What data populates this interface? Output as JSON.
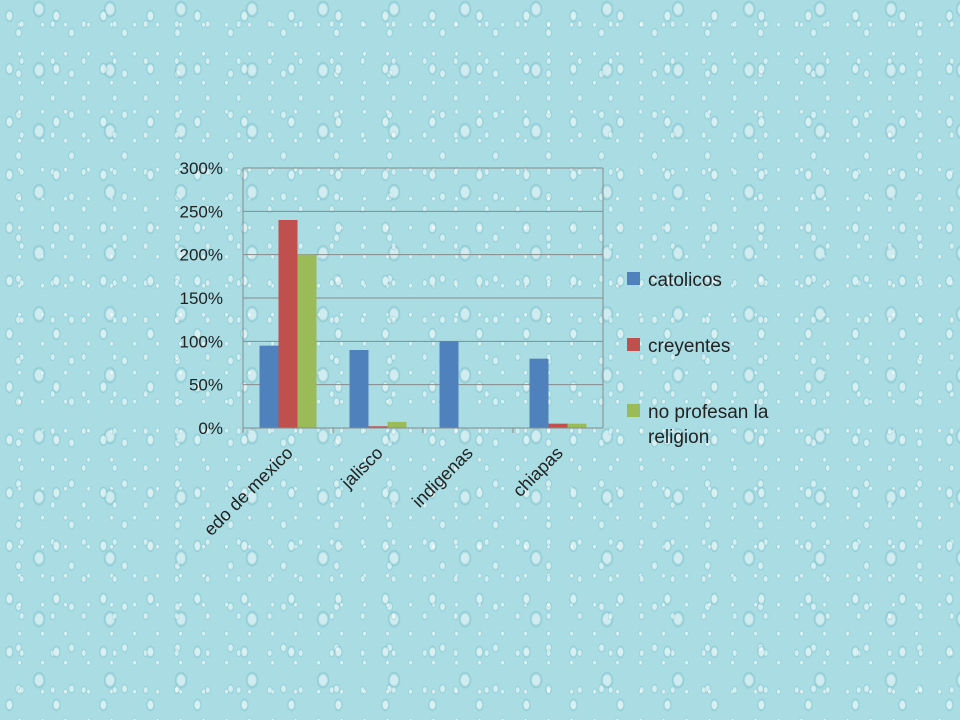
{
  "chart_data": {
    "type": "bar",
    "title": "",
    "xlabel": "",
    "ylabel": "",
    "categories": [
      "edo de mexico",
      "jalisco",
      "indigenas",
      "chiapas"
    ],
    "series": [
      {
        "name": "catolicos",
        "color": "#4f81bd",
        "values": [
          95,
          90,
          100,
          80
        ]
      },
      {
        "name": "creyentes",
        "color": "#c0504d",
        "values": [
          240,
          2,
          0,
          5
        ]
      },
      {
        "name": "no profesan la religion",
        "color": "#9bbb59",
        "values": [
          200,
          7,
          0,
          5
        ]
      }
    ],
    "ylim": [
      0,
      300
    ],
    "yticks": [
      "0%",
      "50%",
      "100%",
      "150%",
      "200%",
      "250%",
      "300%"
    ],
    "unit": "%",
    "grid": true,
    "legend_position": "right",
    "legend_lines": [
      [
        "catolicos"
      ],
      [
        "creyentes"
      ],
      [
        "no profesan la",
        "religion"
      ]
    ]
  }
}
